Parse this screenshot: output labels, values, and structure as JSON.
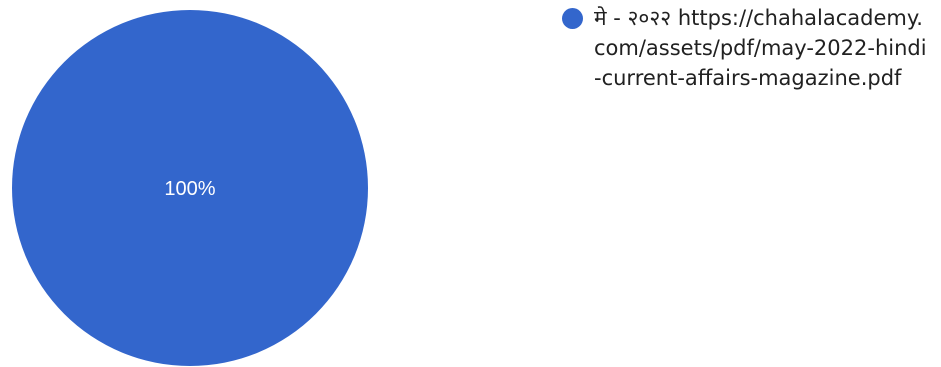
{
  "chart_data": {
    "type": "pie",
    "slices": [
      {
        "label": "मे - २०२२ https://chahalacademy.com/assets/pdf/may-2022-hindi-current-affairs-magazine.pdf",
        "value": 100,
        "value_label": "100%",
        "color": "#3366cc"
      }
    ],
    "legend_position": "right"
  }
}
